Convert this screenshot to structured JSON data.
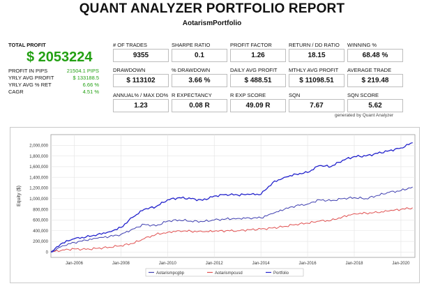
{
  "report": {
    "title": "QUANT ANALYZER PORTFOLIO REPORT",
    "subtitle": "AotarismPortfolio",
    "total_profit_label": "TOTAL PROFIT",
    "total_profit_value": "$ 2053224",
    "left_stats": [
      {
        "label": "PROFIT IN PIPS",
        "value": "21504.1 PIPS"
      },
      {
        "label": "YRLY AVG PROFIT",
        "value": "$ 133188.5"
      },
      {
        "label": "YRLY AVG % RET",
        "value": "6.66 %"
      },
      {
        "label": "CAGR",
        "value": "4.51 %"
      }
    ],
    "metrics": [
      {
        "label": "# OF TRADES",
        "value": "9355"
      },
      {
        "label": "SHARPE RATIO",
        "value": "0.1"
      },
      {
        "label": "PROFIT FACTOR",
        "value": "1.26"
      },
      {
        "label": "RETURN / DD RATIO",
        "value": "18.15"
      },
      {
        "label": "WINNING %",
        "value": "68.48 %"
      },
      {
        "label": "DRAWDOWN",
        "value": "$ 113102"
      },
      {
        "label": "% DRAWDOWN",
        "value": "3.66 %"
      },
      {
        "label": "DAILY AVG PROFIT",
        "value": "$ 488.51"
      },
      {
        "label": "MTHLY AVG PROFIT",
        "value": "$ 11098.51"
      },
      {
        "label": "AVERAGE TRADE",
        "value": "$ 219.48"
      },
      {
        "label": "ANNUAL% / MAX DD%",
        "value": "1.23"
      },
      {
        "label": "R EXPECTANCY",
        "value": "0.08 R"
      },
      {
        "label": "R EXP SCORE",
        "value": "49.09 R"
      },
      {
        "label": "SQN",
        "value": "7.67"
      },
      {
        "label": "SQN SCORE",
        "value": "5.62"
      }
    ],
    "generated_by": "generated by Quant Analyzer"
  },
  "chart_data": {
    "type": "line",
    "ylabel": "Equity ($)",
    "xlabel": "",
    "ylim": [
      -100000,
      2200000
    ],
    "xlim": [
      2005.0,
      2020.6
    ],
    "y_ticks": [
      0,
      200000,
      400000,
      600000,
      800000,
      1000000,
      1200000,
      1400000,
      1600000,
      1800000,
      2000000
    ],
    "y_tick_labels": [
      "0",
      "200,000",
      "400,000",
      "600,000",
      "800,000",
      "1,000,000",
      "1,200,000",
      "1,400,000",
      "1,600,000",
      "1,800,000",
      "2,000,000"
    ],
    "x_ticks": [
      2006,
      2008,
      2010,
      2012,
      2014,
      2016,
      2018,
      2020
    ],
    "x_tick_labels": [
      "Jan-2006",
      "Jan-2008",
      "Jan-2010",
      "Jan-2012",
      "Jan-2014",
      "Jan-2016",
      "Jan-2018",
      "Jan-2020"
    ],
    "grid": true,
    "legend_position": "bottom",
    "series": [
      {
        "name": "Aotarismpcgbp",
        "color": "#3f3fb0",
        "x": [
          2005.0,
          2005.5,
          2006.0,
          2006.5,
          2007.0,
          2007.5,
          2008.0,
          2008.5,
          2009.0,
          2009.5,
          2010.0,
          2010.5,
          2011.0,
          2011.5,
          2012.0,
          2012.5,
          2013.0,
          2013.5,
          2014.0,
          2014.5,
          2015.0,
          2015.5,
          2016.0,
          2016.5,
          2017.0,
          2017.5,
          2018.0,
          2018.5,
          2019.0,
          2019.5,
          2020.0,
          2020.5
        ],
        "values": [
          0,
          120000,
          180000,
          220000,
          260000,
          290000,
          330000,
          430000,
          520000,
          490000,
          580000,
          600000,
          580000,
          570000,
          600000,
          620000,
          630000,
          640000,
          640000,
          720000,
          800000,
          870000,
          900000,
          980000,
          960000,
          1000000,
          1020000,
          1000000,
          1060000,
          1120000,
          1150000,
          1220000
        ]
      },
      {
        "name": "Aotarismpcusd",
        "color": "#e05050",
        "x": [
          2005.0,
          2005.5,
          2006.0,
          2006.5,
          2007.0,
          2007.5,
          2008.0,
          2008.5,
          2009.0,
          2009.5,
          2010.0,
          2010.5,
          2011.0,
          2011.5,
          2012.0,
          2012.5,
          2013.0,
          2013.5,
          2014.0,
          2014.5,
          2015.0,
          2015.5,
          2016.0,
          2016.5,
          2017.0,
          2017.5,
          2018.0,
          2018.5,
          2019.0,
          2019.5,
          2020.0,
          2020.5
        ],
        "values": [
          0,
          40000,
          60000,
          50000,
          70000,
          90000,
          120000,
          160000,
          250000,
          330000,
          370000,
          400000,
          390000,
          380000,
          390000,
          400000,
          400000,
          420000,
          430000,
          450000,
          480000,
          520000,
          540000,
          580000,
          590000,
          660000,
          720000,
          730000,
          740000,
          770000,
          800000,
          830000
        ]
      },
      {
        "name": "Portfolio",
        "color": "#2222cc",
        "x": [
          2005.0,
          2005.5,
          2006.0,
          2006.5,
          2007.0,
          2007.5,
          2008.0,
          2008.5,
          2009.0,
          2009.5,
          2010.0,
          2010.5,
          2011.0,
          2011.5,
          2012.0,
          2012.5,
          2013.0,
          2013.5,
          2014.0,
          2014.5,
          2015.0,
          2015.5,
          2016.0,
          2016.5,
          2017.0,
          2017.5,
          2018.0,
          2018.5,
          2019.0,
          2019.5,
          2020.0,
          2020.5
        ],
        "values": [
          0,
          170000,
          250000,
          280000,
          330000,
          380000,
          460000,
          650000,
          800000,
          850000,
          980000,
          1020000,
          1000000,
          970000,
          1050000,
          1080000,
          1070000,
          1080000,
          1080000,
          1300000,
          1400000,
          1460000,
          1490000,
          1620000,
          1600000,
          1720000,
          1790000,
          1800000,
          1850000,
          1900000,
          1950000,
          2050000
        ]
      }
    ]
  }
}
